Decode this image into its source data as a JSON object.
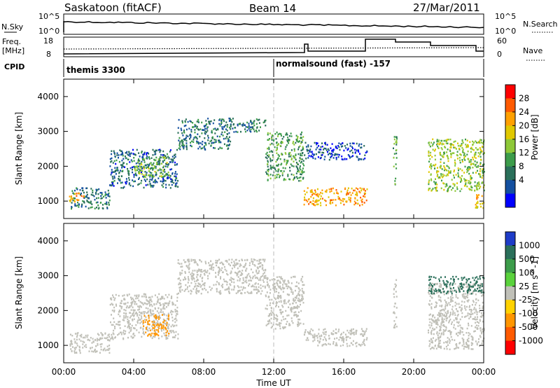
{
  "header": {
    "station": "Saskatoon (fitACF)",
    "beam": "Beam 14",
    "date": "27/Mar/2011"
  },
  "panels": {
    "nsky": {
      "left_label": "N.Sky",
      "left_ticks": [
        "10^5",
        "10^0"
      ],
      "right_label": "N.Search",
      "right_ticks": [
        "10^5",
        "10^0"
      ]
    },
    "freq": {
      "left_label": "Freq.",
      "left_unit": "[MHz]",
      "left_ticks": [
        "18",
        "8"
      ],
      "right_label": "Nave",
      "right_ticks": [
        "60",
        "0"
      ]
    },
    "cpid": {
      "label": "CPID",
      "segments": [
        "themis 3300",
        "normalsound (fast) -157"
      ]
    }
  },
  "colorbars": {
    "power": {
      "label": "Power [dB]",
      "ticks": [
        "28",
        "24",
        "20",
        "16",
        "12",
        "8",
        "4"
      ],
      "colors": [
        "#ff0000",
        "#ff5a00",
        "#ffa000",
        "#e0c800",
        "#8ec838",
        "#3c9c4a",
        "#2a6f5a",
        "#1450a0",
        "#0000ff"
      ]
    },
    "velocity": {
      "label": "Velocity [m s^-1]",
      "ticks": [
        "1000",
        "500",
        "100",
        "25",
        "-25",
        "-100",
        "-500",
        "-1000"
      ],
      "colors": [
        "#1e3cc8",
        "#2a6f5a",
        "#3c9c4a",
        "#5ad23c",
        "#c0c0b8",
        "#ffd200",
        "#ff9600",
        "#ff5a00",
        "#ff0000"
      ]
    }
  },
  "chart_data": [
    {
      "type": "heatmap",
      "name": "power",
      "ylabel": "Slant Range [km]",
      "ylim": [
        500,
        4500
      ],
      "yticks": [
        "4000",
        "3000",
        "2000",
        "1000"
      ],
      "xlim": [
        0,
        24
      ],
      "zlabel": "Power [dB]",
      "zlim": [
        0,
        32
      ],
      "bands": [
        {
          "t0": 0.3,
          "t1": 2.6,
          "r0": 800,
          "r1": 1400,
          "v": 10
        },
        {
          "t0": 0.3,
          "t1": 1.2,
          "r0": 1000,
          "r1": 1250,
          "v": 26
        },
        {
          "t0": 2.6,
          "t1": 6.5,
          "r0": 1400,
          "r1": 2500,
          "v": 8
        },
        {
          "t0": 4.0,
          "t1": 6.0,
          "r0": 1700,
          "r1": 2300,
          "v": 16
        },
        {
          "t0": 6.5,
          "t1": 9.5,
          "r0": 2500,
          "r1": 3400,
          "v": 9
        },
        {
          "t0": 9.5,
          "t1": 11.5,
          "r0": 3000,
          "r1": 3400,
          "v": 10
        },
        {
          "t0": 11.5,
          "t1": 13.7,
          "r0": 1600,
          "r1": 3000,
          "v": 14
        },
        {
          "t0": 13.7,
          "t1": 17.3,
          "r0": 900,
          "r1": 1400,
          "v": 26
        },
        {
          "t0": 13.7,
          "t1": 17.3,
          "r0": 2200,
          "r1": 2700,
          "v": 6
        },
        {
          "t0": 18.8,
          "t1": 19.0,
          "r0": 1500,
          "r1": 2900,
          "v": 14
        },
        {
          "t0": 20.8,
          "t1": 24.0,
          "r0": 1300,
          "r1": 2800,
          "v": 18
        },
        {
          "t0": 23.5,
          "t1": 24.0,
          "r0": 800,
          "r1": 1300,
          "v": 24
        }
      ]
    },
    {
      "type": "heatmap",
      "name": "velocity",
      "ylabel": "Slant Range [km]",
      "xlabel": "Time UT",
      "ylim": [
        500,
        4500
      ],
      "yticks": [
        "4000",
        "3000",
        "2000",
        "1000"
      ],
      "xlim": [
        0,
        24
      ],
      "xticks": [
        "00:00",
        "04:00",
        "08:00",
        "12:00",
        "16:00",
        "20:00",
        "00:00"
      ],
      "zlabel": "Velocity [m s^-1]",
      "zlim": [
        -1000,
        1000
      ],
      "bands": [
        {
          "t0": 0.3,
          "t1": 2.6,
          "r0": 800,
          "r1": 1400,
          "v": 0
        },
        {
          "t0": 2.6,
          "t1": 6.5,
          "r0": 1200,
          "r1": 2500,
          "v": 0
        },
        {
          "t0": 4.5,
          "t1": 6.0,
          "r0": 1300,
          "r1": 1900,
          "v": -150
        },
        {
          "t0": 6.5,
          "t1": 11.5,
          "r0": 2500,
          "r1": 3500,
          "v": 0
        },
        {
          "t0": 11.5,
          "t1": 13.7,
          "r0": 1500,
          "r1": 3000,
          "v": 0
        },
        {
          "t0": 13.7,
          "t1": 17.3,
          "r0": 1000,
          "r1": 1500,
          "v": 0
        },
        {
          "t0": 18.8,
          "t1": 19.0,
          "r0": 1500,
          "r1": 2900,
          "v": 0
        },
        {
          "t0": 20.8,
          "t1": 24.0,
          "r0": 900,
          "r1": 2800,
          "v": 0
        },
        {
          "t0": 20.8,
          "t1": 24.0,
          "r0": 2500,
          "r1": 3000,
          "v": 300
        }
      ]
    }
  ]
}
